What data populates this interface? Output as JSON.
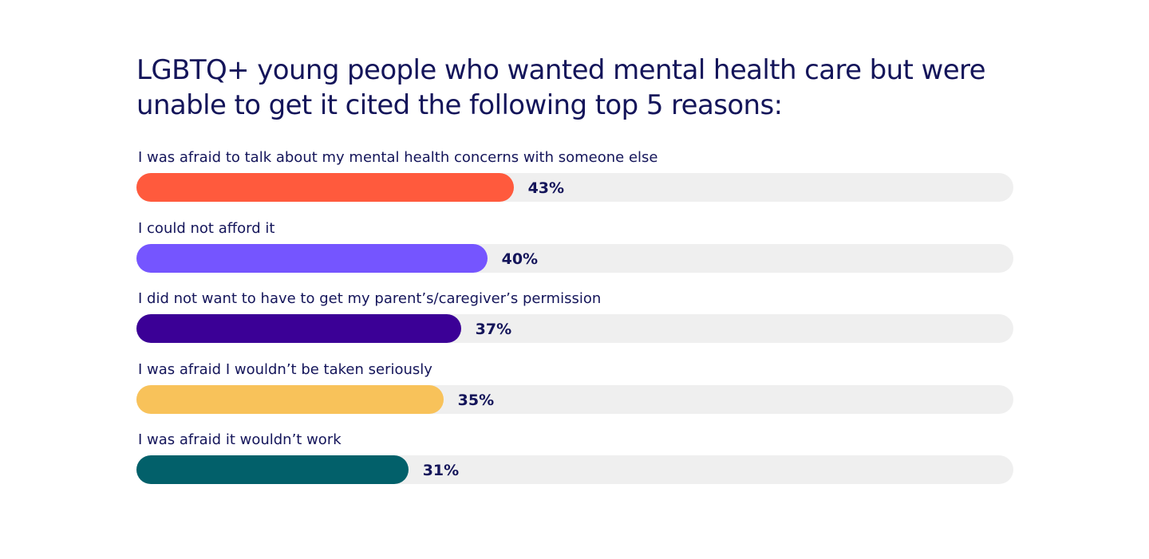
{
  "chart_data": {
    "type": "bar",
    "orientation": "horizontal",
    "title": "LGBTQ+ young people who wanted mental health care but were unable to get it cited the following top 5 reasons:",
    "categories": [
      "I was afraid to talk about my mental health concerns with someone else",
      "I could not afford it",
      "I did not want to have to get my parent’s/caregiver’s permission",
      "I was afraid I wouldn’t be taken seriously",
      "I was afraid it wouldn’t work"
    ],
    "values": [
      43,
      40,
      37,
      35,
      31
    ],
    "value_labels": [
      "43%",
      "40%",
      "37%",
      "35%",
      "31%"
    ],
    "bar_colors": [
      "#ff5a3d",
      "#7555ff",
      "#3b0096",
      "#f8c25a",
      "#02606a"
    ],
    "track_color": "#efefef",
    "text_color": "#14155a",
    "xlim": [
      0,
      100
    ],
    "grid": false,
    "legend": "none"
  }
}
